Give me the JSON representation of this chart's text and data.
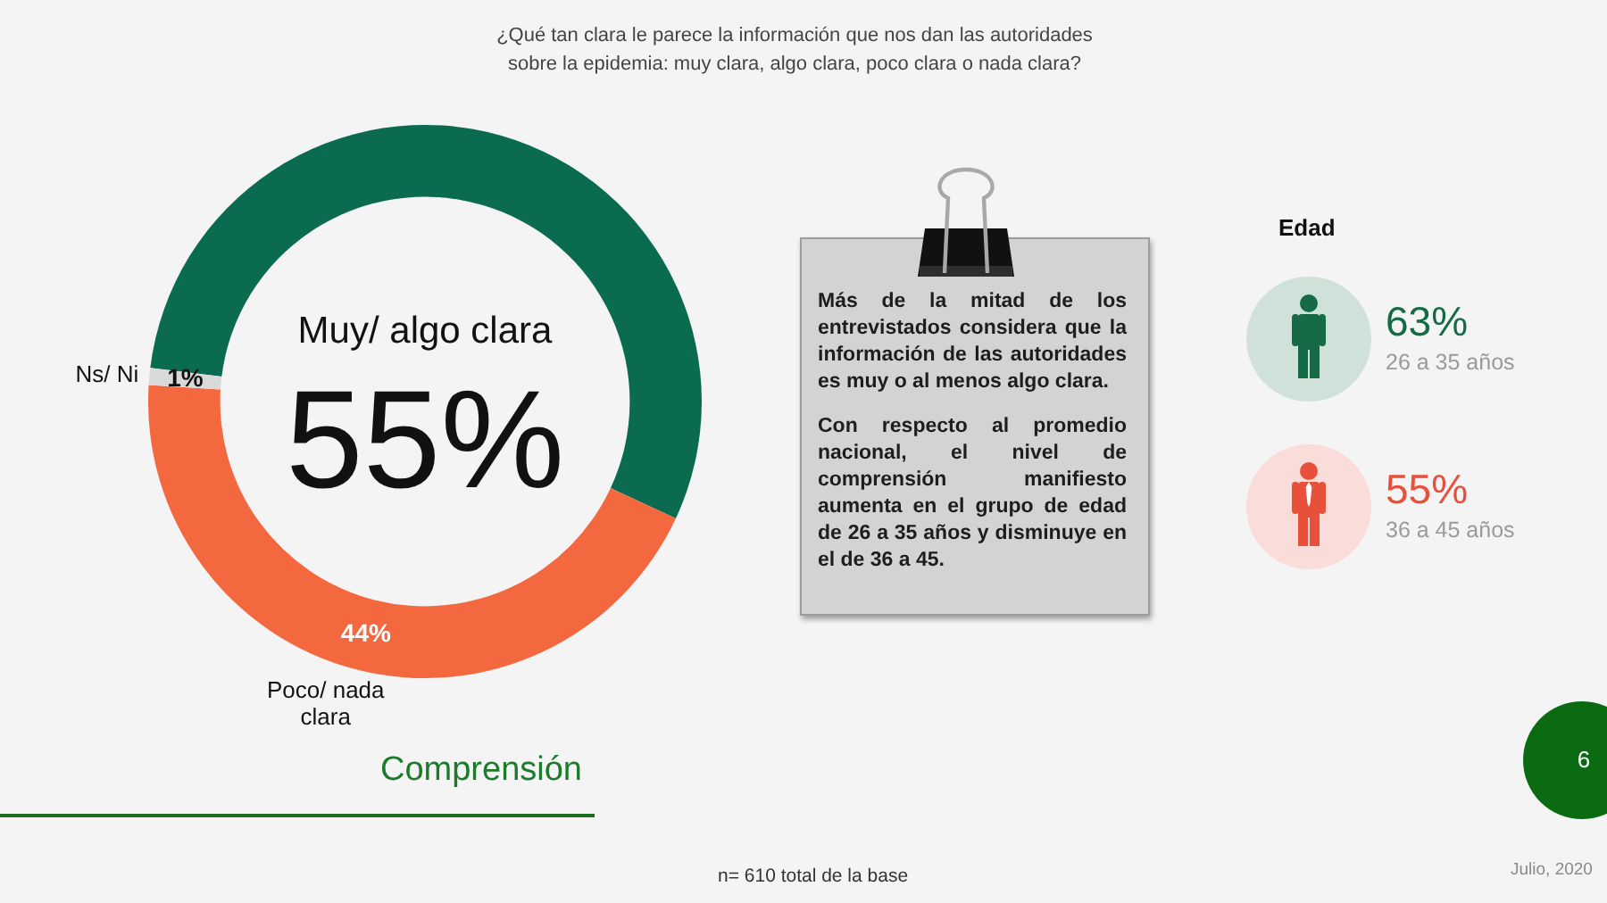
{
  "chart_data": [
    {
      "type": "donut",
      "title": "¿Qué tan clara le parece la información que nos dan las autoridades\nsobre la epidemia: muy clara, algo clara, poco clara o nada clara?",
      "categories": [
        "Muy/ algo clara",
        "Poco/ nada clara",
        "Ns/ Ni"
      ],
      "values": [
        55,
        44,
        1
      ],
      "colors": [
        "#0b6b50",
        "#f4683f",
        "#d9d9d9"
      ],
      "value_labels": [
        "55%",
        "44%",
        "1%"
      ],
      "annotations": [
        "Comprensión",
        "n= 610 total de la base",
        "Julio, 2020",
        "6"
      ]
    },
    {
      "type": "other",
      "annotations": [
        "Más de la mitad de los entrevistados considera que la información de las autoridades es muy o al menos algo clara.",
        "Con respecto al promedio nacional, el nivel de comprensión manifiesto aumenta en el grupo de edad de 26 a 35 años y disminuye en el de 36 a 45."
      ]
    },
    {
      "type": "other",
      "title": "Edad",
      "categories": [
        "26 a 35 años",
        "36 a 45 años"
      ],
      "values": [
        63,
        55
      ],
      "value_labels": [
        "63%",
        "55%"
      ],
      "colors": [
        "#146b45",
        "#e8503b"
      ]
    }
  ]
}
